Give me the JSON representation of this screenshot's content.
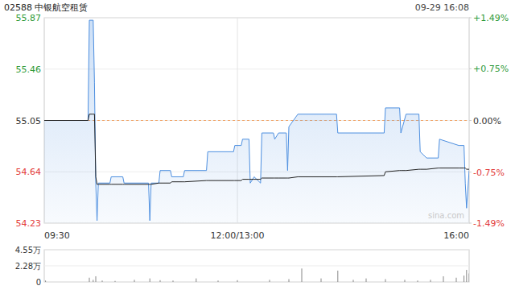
{
  "chart_data": [
    {
      "type": "line",
      "title": "02588 中银航空租赁",
      "subtitle": "09-29 16:08",
      "x": [
        0,
        34,
        35,
        38,
        39,
        40,
        41,
        42,
        51,
        52,
        61,
        62,
        81,
        82,
        83,
        89,
        90,
        98,
        99,
        108,
        109,
        126,
        127,
        147,
        148,
        153,
        154,
        159,
        160,
        163,
        168,
        169,
        178,
        179,
        182,
        188,
        189,
        190,
        197,
        227,
        228,
        264,
        265,
        276,
        277,
        281,
        291,
        292,
        297,
        306,
        307,
        322,
        326,
        327,
        328,
        330
      ],
      "series": [
        {
          "type": "area",
          "color": "#4d8fe0",
          "values": [
            55.05,
            55.05,
            55.85,
            55.85,
            55.35,
            54.55,
            54.25,
            54.55,
            54.55,
            54.6,
            54.6,
            54.55,
            54.55,
            54.25,
            54.55,
            54.55,
            54.65,
            54.65,
            54.6,
            54.6,
            54.65,
            54.65,
            54.8,
            54.8,
            54.85,
            54.85,
            54.9,
            54.9,
            54.55,
            54.6,
            54.55,
            54.95,
            54.95,
            54.9,
            54.95,
            54.95,
            54.65,
            55.0,
            55.1,
            55.1,
            54.95,
            54.95,
            55.15,
            55.15,
            54.95,
            55.1,
            55.1,
            54.8,
            54.75,
            54.75,
            54.9,
            54.85,
            54.85,
            54.55,
            54.35,
            54.65
          ]
        },
        {
          "type": "line",
          "color": "#222222",
          "values": [
            55.05,
            55.05,
            55.1,
            55.1,
            55.1,
            54.6,
            54.54,
            54.54,
            54.54,
            54.54,
            54.54,
            54.54,
            54.54,
            54.54,
            54.54,
            54.55,
            54.55,
            54.55,
            54.56,
            54.56,
            54.56,
            54.57,
            54.57,
            54.57,
            54.57,
            54.57,
            54.58,
            54.58,
            54.58,
            54.58,
            54.58,
            54.59,
            54.59,
            54.59,
            54.59,
            54.59,
            54.59,
            54.59,
            54.6,
            54.6,
            54.6,
            54.61,
            54.64,
            54.65,
            54.65,
            54.65,
            54.66,
            54.66,
            54.66,
            54.67,
            54.67,
            54.67,
            54.67,
            54.67,
            54.66,
            54.66
          ]
        }
      ],
      "xlim": [
        0,
        330
      ],
      "xticks": [
        {
          "value": 0,
          "label": "09:30"
        },
        {
          "value": 150,
          "label": "12:00/13:00"
        },
        {
          "value": 330,
          "label": "16:00"
        }
      ],
      "ylim": [
        54.23,
        55.87
      ],
      "yticks": [
        54.23,
        54.64,
        55.05,
        55.46,
        55.87
      ],
      "y2lim": [
        -1.49,
        1.49
      ],
      "y2ticks": [
        {
          "value": -1.49,
          "label": "-1.49%"
        },
        {
          "value": -0.75,
          "label": "-0.75%"
        },
        {
          "value": 0,
          "label": "0.00%"
        },
        {
          "value": 0.75,
          "label": "+0.75%"
        },
        {
          "value": 1.49,
          "label": "+1.49%"
        }
      ],
      "grid": true,
      "annotations": [
        "sina.com"
      ]
    },
    {
      "type": "bar",
      "color": "#888888",
      "x": [
        1,
        35,
        38,
        40,
        45,
        55,
        70,
        82,
        90,
        100,
        118,
        135,
        150,
        175,
        190,
        200,
        215,
        228,
        240,
        250,
        265,
        280,
        290,
        300,
        310,
        320,
        326,
        328,
        330
      ],
      "values": [
        0.2,
        0.6,
        0.3,
        0.8,
        0.2,
        0.15,
        0.3,
        0.5,
        0.25,
        0.2,
        0.5,
        0.2,
        0.25,
        0.3,
        0.4,
        1.9,
        0.5,
        1.6,
        0.3,
        0.5,
        0.4,
        0.3,
        0.2,
        0.3,
        0.8,
        0.6,
        0.9,
        1.7,
        1.2
      ],
      "xlim": [
        0,
        330
      ],
      "ylim": [
        0,
        4.55
      ],
      "yticks": [
        0,
        {
          "value": 2.28,
          "label": "2.28万"
        },
        {
          "value": 4.55,
          "label": "4.55万"
        }
      ],
      "grid": true,
      "tick_labels": "y"
    }
  ]
}
